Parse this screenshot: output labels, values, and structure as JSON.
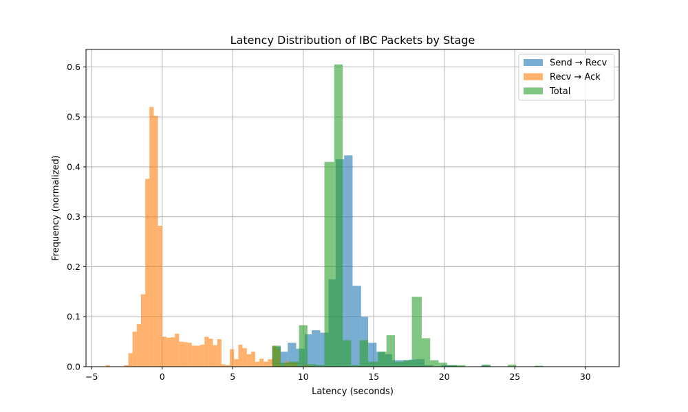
{
  "chart_data": {
    "type": "bar",
    "title": "Latency Distribution of IBC Packets by Stage",
    "xlabel": "Latency (seconds)",
    "ylabel": "Frequency (normalized)",
    "xlim": [
      -5.4,
      32.4
    ],
    "ylim": [
      0,
      0.635
    ],
    "xticks": [
      -5,
      0,
      5,
      10,
      15,
      20,
      25,
      30
    ],
    "xtick_labels": [
      "−5",
      "0",
      "5",
      "10",
      "15",
      "20",
      "25",
      "30"
    ],
    "yticks": [
      0.0,
      0.1,
      0.2,
      0.3,
      0.4,
      0.5,
      0.6
    ],
    "ytick_labels": [
      "0.0",
      "0.1",
      "0.2",
      "0.3",
      "0.4",
      "0.5",
      "0.6"
    ],
    "grid": true,
    "legend_position": "top-right",
    "alpha": 0.6,
    "series": [
      {
        "name": "Send → Recv",
        "color": "#1f77b4",
        "bins": [
          [
            7.8,
            8.4,
            0.04
          ],
          [
            8.4,
            8.9,
            0.03
          ],
          [
            8.9,
            9.5,
            0.048
          ],
          [
            9.5,
            10.1,
            0.036
          ],
          [
            10.1,
            10.6,
            0.065
          ],
          [
            10.6,
            11.2,
            0.073
          ],
          [
            11.2,
            11.8,
            0.068
          ],
          [
            11.8,
            12.3,
            0.175
          ],
          [
            12.3,
            12.9,
            0.415
          ],
          [
            12.9,
            13.5,
            0.423
          ],
          [
            13.5,
            14.1,
            0.162
          ],
          [
            14.1,
            14.6,
            0.1
          ],
          [
            14.6,
            15.2,
            0.048
          ],
          [
            15.2,
            15.8,
            0.03
          ],
          [
            15.8,
            16.3,
            0.025
          ],
          [
            16.3,
            16.9,
            0.013
          ],
          [
            16.9,
            17.5,
            0.013
          ],
          [
            17.5,
            18.0,
            0.014
          ],
          [
            18.0,
            18.6,
            0.015
          ],
          [
            18.6,
            19.2,
            0.003
          ],
          [
            19.8,
            20.3,
            0.003
          ],
          [
            20.3,
            20.9,
            0.003
          ],
          [
            22.6,
            23.2,
            0.003
          ]
        ]
      },
      {
        "name": "Recv → Ack",
        "color": "#ff7f0e",
        "bins": [
          [
            -4.0,
            -3.7,
            0.003
          ],
          [
            -2.7,
            -2.4,
            0.003
          ],
          [
            -2.4,
            -2.1,
            0.027
          ],
          [
            -2.1,
            -1.8,
            0.07
          ],
          [
            -1.8,
            -1.5,
            0.085
          ],
          [
            -1.5,
            -1.2,
            0.145
          ],
          [
            -1.2,
            -0.9,
            0.376
          ],
          [
            -0.9,
            -0.6,
            0.52
          ],
          [
            -0.6,
            -0.3,
            0.502
          ],
          [
            -0.3,
            0.0,
            0.282
          ],
          [
            0.0,
            0.3,
            0.06
          ],
          [
            0.3,
            0.6,
            0.058
          ],
          [
            0.6,
            0.9,
            0.059
          ],
          [
            0.9,
            1.2,
            0.066
          ],
          [
            1.2,
            1.5,
            0.05
          ],
          [
            1.5,
            1.8,
            0.049
          ],
          [
            1.8,
            2.1,
            0.048
          ],
          [
            2.1,
            2.4,
            0.042
          ],
          [
            2.4,
            2.7,
            0.042
          ],
          [
            2.7,
            3.0,
            0.044
          ],
          [
            3.0,
            3.3,
            0.06
          ],
          [
            3.3,
            3.6,
            0.056
          ],
          [
            3.6,
            3.9,
            0.043
          ],
          [
            3.9,
            4.2,
            0.055
          ],
          [
            4.2,
            4.5,
            0.005
          ],
          [
            4.5,
            4.8,
            0.003
          ],
          [
            4.8,
            5.1,
            0.035
          ],
          [
            5.1,
            5.4,
            0.015
          ],
          [
            5.4,
            5.7,
            0.044
          ],
          [
            5.7,
            6.0,
            0.037
          ],
          [
            6.0,
            6.3,
            0.025
          ],
          [
            6.3,
            6.6,
            0.03
          ],
          [
            6.6,
            6.9,
            0.01
          ],
          [
            6.9,
            7.2,
            0.016
          ],
          [
            7.2,
            7.5,
            0.01
          ],
          [
            7.5,
            7.8,
            0.015
          ],
          [
            7.8,
            8.1,
            0.042
          ],
          [
            8.1,
            8.4,
            0.035
          ],
          [
            8.4,
            8.7,
            0.003
          ],
          [
            8.7,
            9.0,
            0.01
          ],
          [
            9.0,
            9.3,
            0.008
          ],
          [
            9.3,
            9.6,
            0.008
          ],
          [
            9.9,
            10.2,
            0.003
          ],
          [
            10.2,
            10.5,
            0.003
          ]
        ]
      },
      {
        "name": "Total",
        "color": "#2ca02c",
        "bins": [
          [
            7.8,
            8.4,
            0.042
          ],
          [
            8.4,
            9.0,
            0.008
          ],
          [
            9.0,
            9.7,
            0.01
          ],
          [
            9.7,
            10.3,
            0.083
          ],
          [
            10.3,
            10.9,
            0.005
          ],
          [
            10.9,
            11.5,
            0.003
          ],
          [
            11.5,
            12.2,
            0.41
          ],
          [
            12.2,
            12.8,
            0.605
          ],
          [
            12.8,
            13.4,
            0.053
          ],
          [
            13.4,
            14.0,
            0.003
          ],
          [
            14.0,
            14.6,
            0.053
          ],
          [
            14.6,
            15.3,
            0.01
          ],
          [
            15.3,
            15.9,
            0.03
          ],
          [
            15.9,
            16.5,
            0.063
          ],
          [
            16.5,
            17.1,
            0.01
          ],
          [
            17.1,
            17.7,
            0.013
          ],
          [
            17.7,
            18.4,
            0.14
          ],
          [
            18.4,
            19.0,
            0.057
          ],
          [
            19.0,
            19.6,
            0.013
          ],
          [
            19.6,
            20.2,
            0.008
          ],
          [
            20.2,
            20.8,
            0.003
          ],
          [
            20.8,
            21.5,
            0.003
          ],
          [
            22.7,
            23.3,
            0.004
          ],
          [
            24.5,
            25.1,
            0.004
          ],
          [
            26.4,
            27.0,
            0.002
          ]
        ]
      }
    ]
  }
}
